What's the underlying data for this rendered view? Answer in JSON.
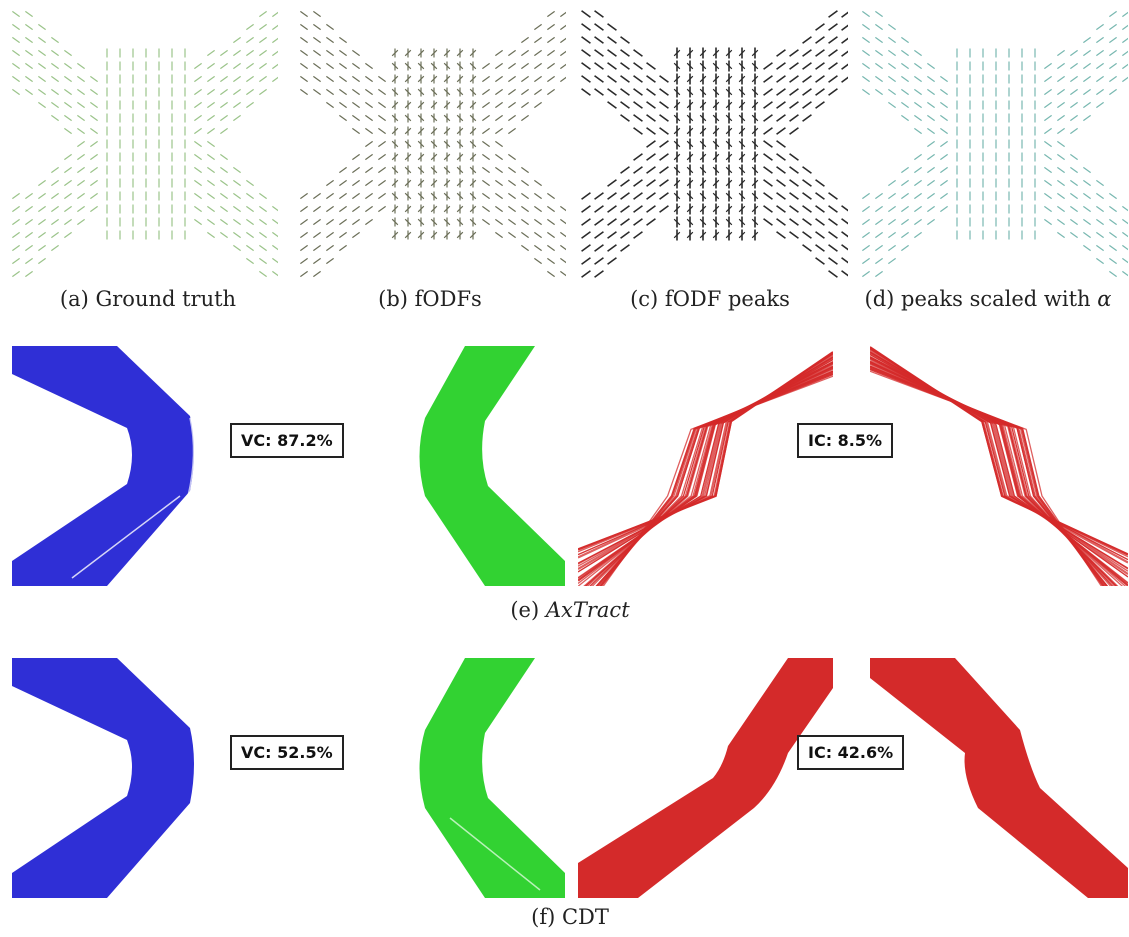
{
  "figure": {
    "top_row": {
      "panels": [
        {
          "label": "(a) Ground truth",
          "color": "#9bc48a"
        },
        {
          "label": "(b) fODFs",
          "color": "#6b6f58"
        },
        {
          "label": "(c) fODF peaks",
          "color": "#2a2a2a"
        },
        {
          "label_prefix": "(d) peaks scaled with ",
          "label_symbol": "α",
          "color": "#78b8b0"
        }
      ]
    },
    "axtract": {
      "caption_prefix": "(e) ",
      "caption_name": "AxTract",
      "vc_label": "VC: 87.2%",
      "ic_label": "IC: 8.5%"
    },
    "cdt": {
      "caption": "(f) CDT",
      "vc_label": "VC: 52.5%",
      "ic_label": "IC: 42.6%"
    },
    "colors": {
      "blue_bundle": "#2f2fd6",
      "green_bundle": "#32d232",
      "red_bundle": "#d42a2a"
    }
  }
}
